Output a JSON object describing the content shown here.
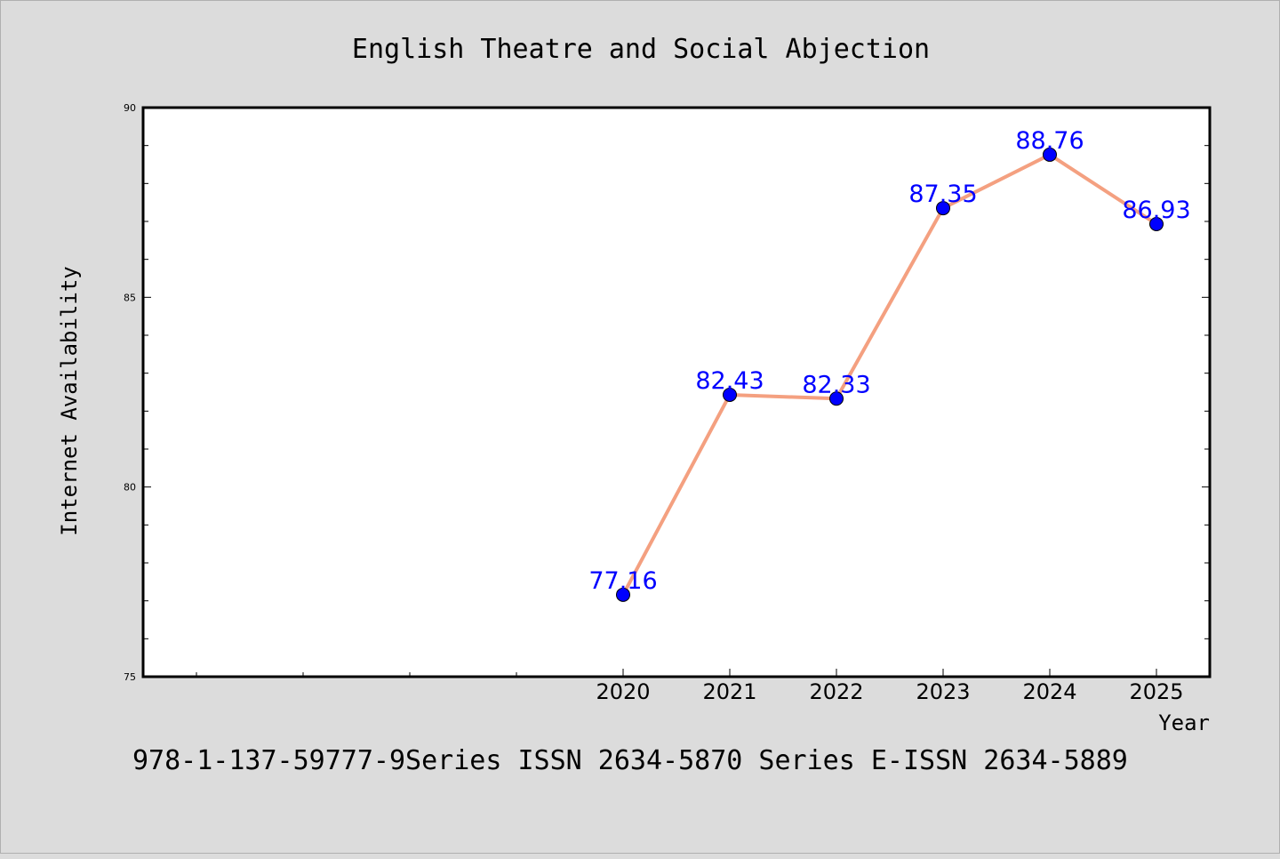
{
  "chart_data": {
    "type": "line",
    "title": "English Theatre and Social Abjection",
    "xlabel": "Year",
    "ylabel": "Internet Availability",
    "x": [
      2020,
      2021,
      2022,
      2023,
      2024,
      2025
    ],
    "xlim": [
      2015.5,
      2025.5
    ],
    "ylim": [
      75,
      90
    ],
    "y_major_ticks": [
      75,
      80,
      85,
      90
    ],
    "y_minor_step": 1,
    "x_minor_ticks": [
      2016,
      2017,
      2018,
      2019
    ],
    "series": [
      {
        "values": [
          77.16,
          82.43,
          82.33,
          87.35,
          88.76,
          86.93
        ],
        "labels": [
          "77.16",
          "82.43",
          "82.33",
          "87.35",
          "88.76",
          "86.93"
        ]
      }
    ],
    "line_color": "#f4a080",
    "marker_color": "#0000ff",
    "label_color": "#0000ff",
    "grid": false,
    "legend": "none",
    "footnote": "978-1-137-59777-9Series ISSN 2634-5870 Series E-ISSN 2634-5889"
  }
}
